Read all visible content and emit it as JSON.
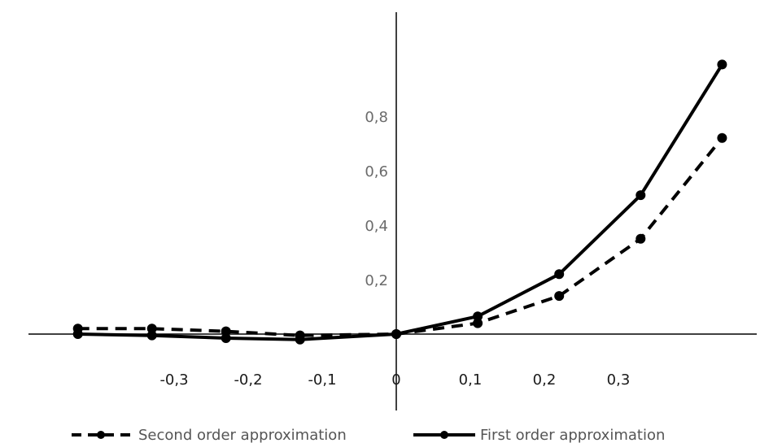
{
  "chart_data": {
    "type": "line",
    "x": [
      -0.43,
      -0.33,
      -0.23,
      -0.13,
      0.0,
      0.11,
      0.22,
      0.33,
      0.44
    ],
    "series": [
      {
        "name": "Second order approximation",
        "values": [
          0.02,
          0.02,
          0.01,
          -0.005,
          0.0,
          0.04,
          0.14,
          0.35,
          0.72
        ],
        "style": "dashed"
      },
      {
        "name": "First order approximation",
        "values": [
          0.0,
          -0.005,
          -0.015,
          -0.02,
          0.0,
          0.065,
          0.22,
          0.51,
          0.99
        ],
        "style": "solid"
      }
    ],
    "x_ticks": [
      {
        "value": -0.3,
        "label": "-0,3"
      },
      {
        "value": -0.2,
        "label": "-0,2"
      },
      {
        "value": -0.1,
        "label": "-0,1"
      },
      {
        "value": 0.0,
        "label": "0"
      },
      {
        "value": 0.1,
        "label": "0,1"
      },
      {
        "value": 0.2,
        "label": "0,2"
      },
      {
        "value": 0.3,
        "label": "0,3"
      }
    ],
    "y_ticks": [
      {
        "value": 0.2,
        "label": "0,2"
      },
      {
        "value": 0.4,
        "label": "0,4"
      },
      {
        "value": 0.6,
        "label": "0,6"
      },
      {
        "value": 0.8,
        "label": "0,8"
      }
    ],
    "xlim": [
      -0.47,
      0.49
    ],
    "ylim": [
      -0.1,
      1.2
    ],
    "grid": false,
    "legend_position": "bottom",
    "colors": {
      "line": "#000000",
      "axis": "#000000",
      "x_tick_text": "#1a1a1a",
      "y_tick_text": "#6b6b6b",
      "legend_text": "#555555"
    },
    "title": "",
    "xlabel": "",
    "ylabel": ""
  }
}
